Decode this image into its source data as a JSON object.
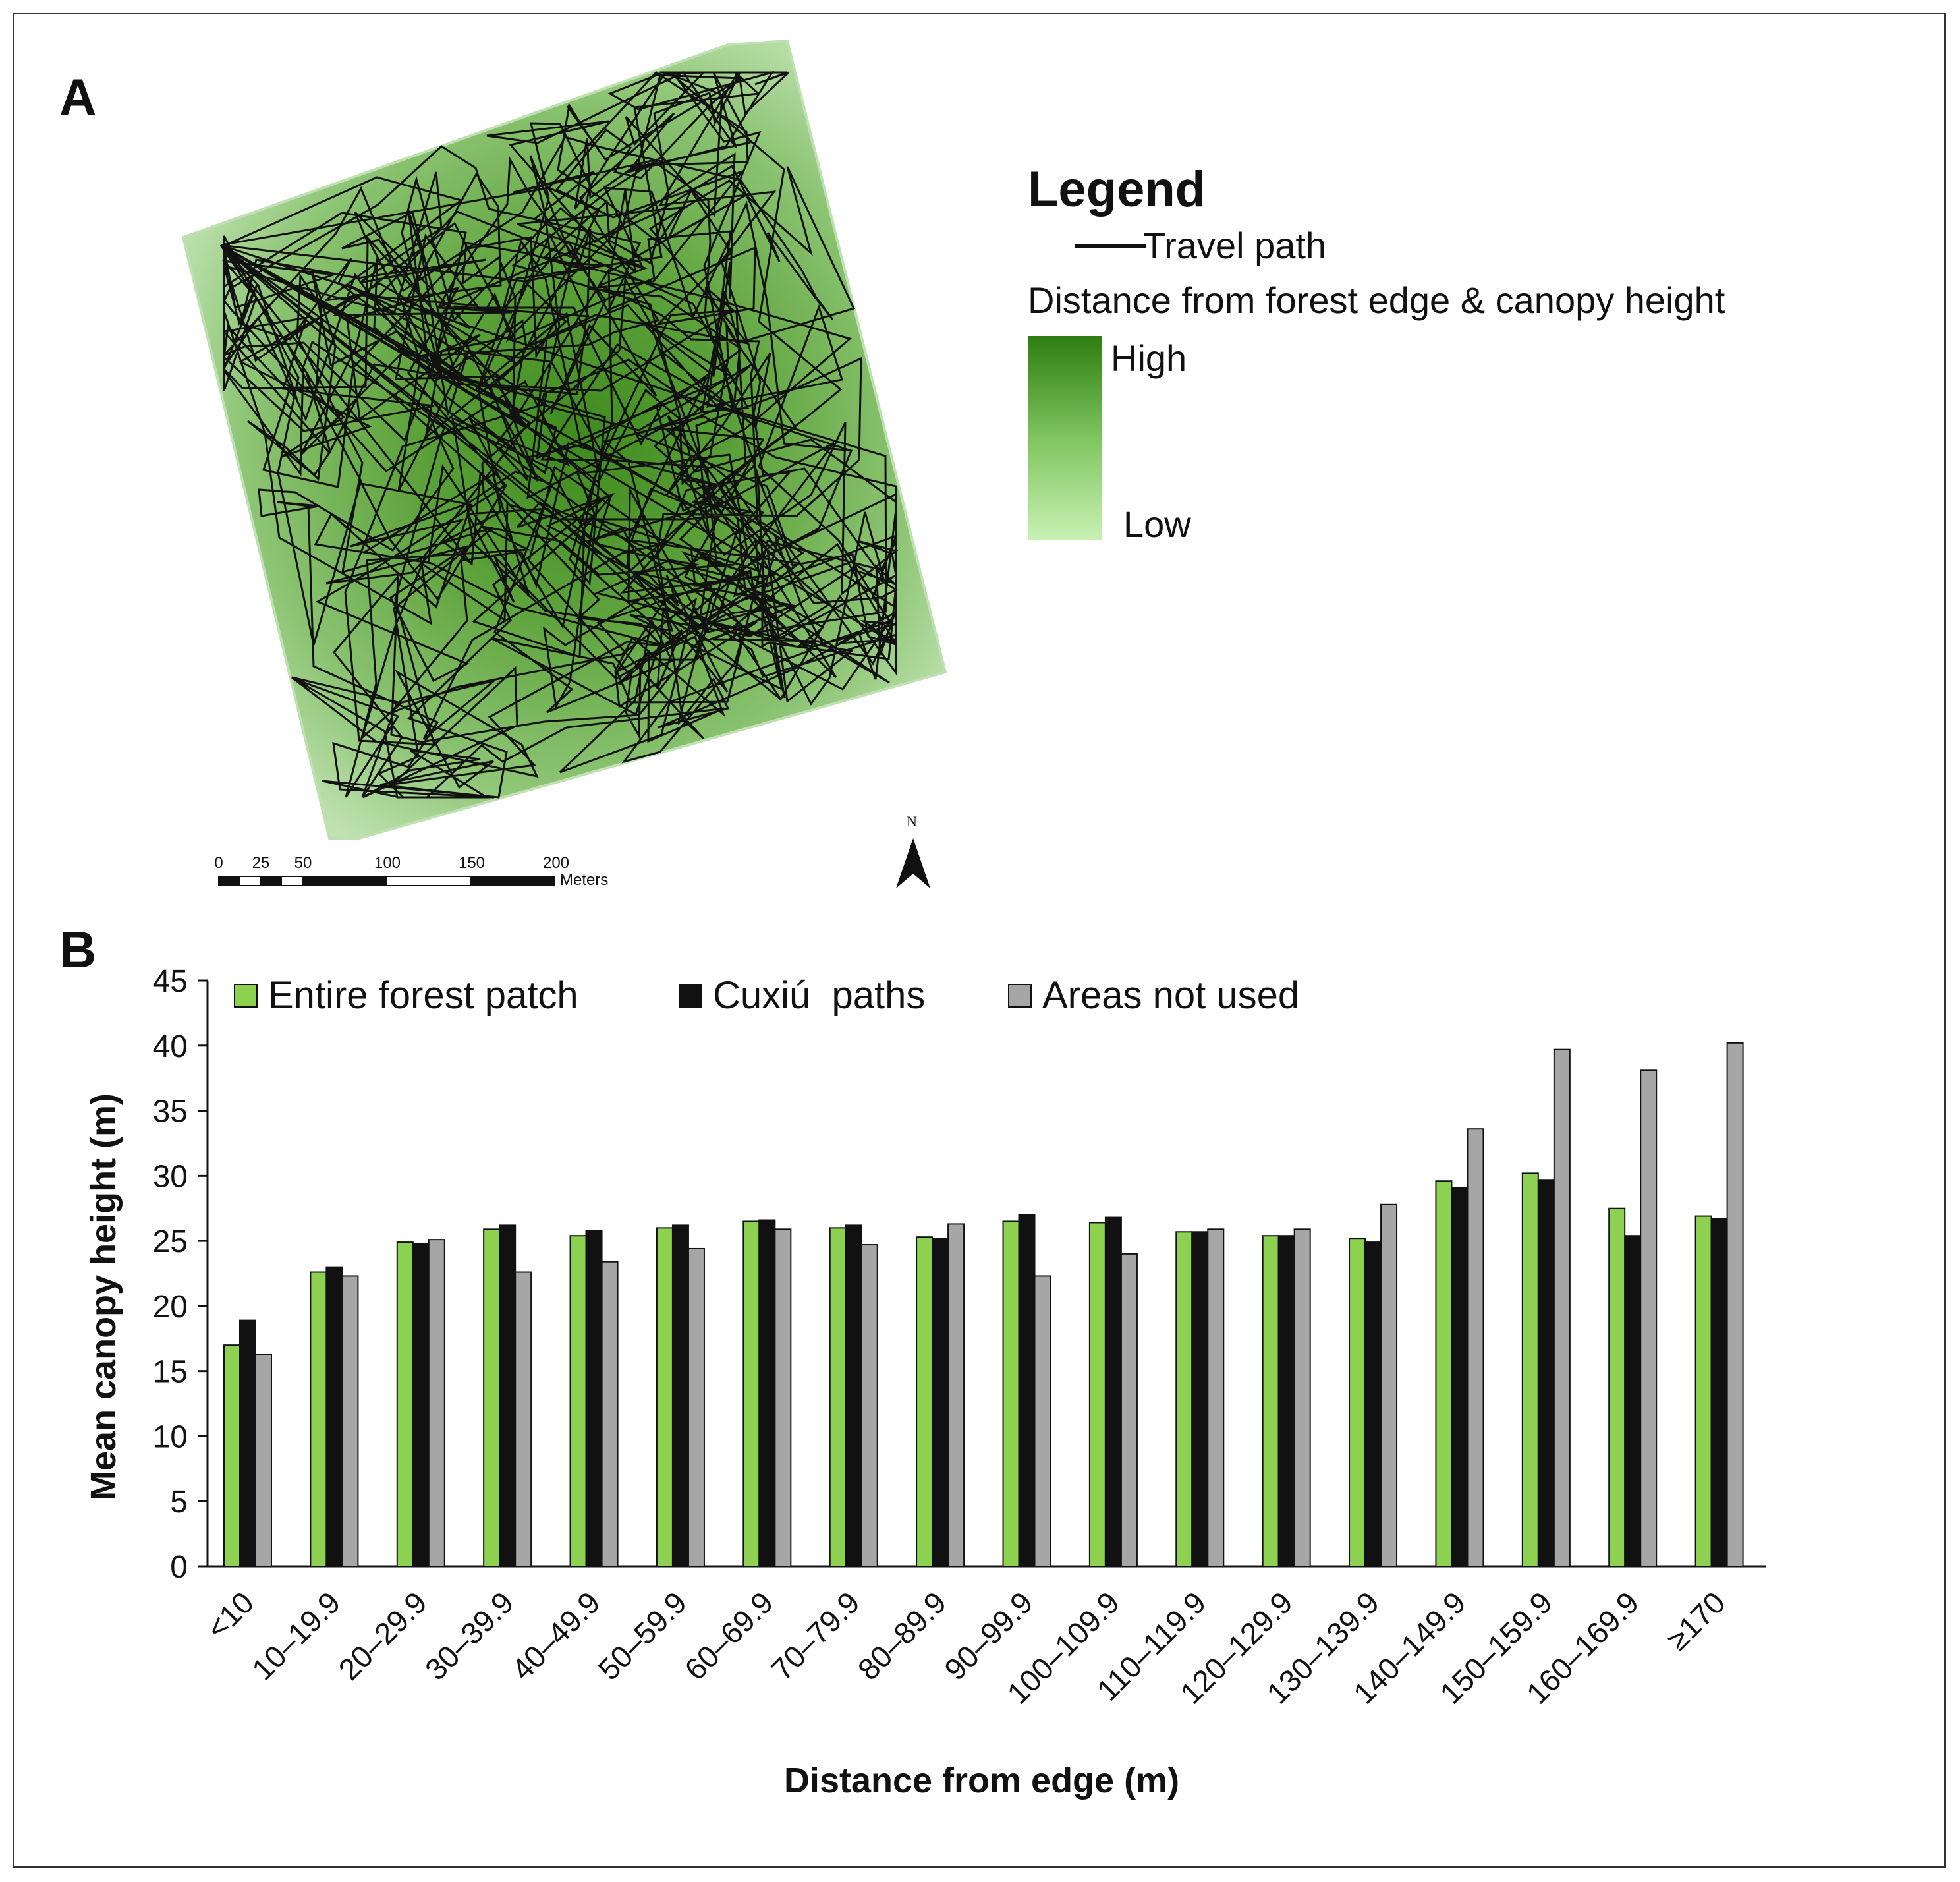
{
  "panel_a": {
    "label": "A",
    "legend": {
      "title": "Legend",
      "travel_path_label": "Travel path",
      "ramp_title": "Distance from forest edge & canopy height",
      "high_label": "High",
      "low_label": "Low"
    },
    "scale_bar": {
      "ticks": [
        "0",
        "25",
        "50",
        "100",
        "150",
        "200"
      ],
      "unit": "Meters"
    },
    "north_label": "N",
    "colors": {
      "ramp_high": "#2f7d10",
      "ramp_low": "#c8f2b4",
      "path": "#111111"
    }
  },
  "panel_b": {
    "label": "B"
  },
  "chart_data": {
    "type": "bar",
    "title": "",
    "xlabel": "Distance from edge (m)",
    "ylabel": "Mean canopy height (m)",
    "ylim": [
      0,
      45
    ],
    "yticks": [
      0,
      5,
      10,
      15,
      20,
      25,
      30,
      35,
      40,
      45
    ],
    "grid": false,
    "legend_position": "top",
    "categories": [
      "<10",
      "10–19.9",
      "20–29.9",
      "30–39.9",
      "40–49.9",
      "50–59.9",
      "60–69.9",
      "70–79.9",
      "80–89.9",
      "90–99.9",
      "100–109.9",
      "110–119.9",
      "120–129.9",
      "130–139.9",
      "140–149.9",
      "150–159.9",
      "160–169.9",
      "≥170"
    ],
    "series": [
      {
        "name": "Entire forest patch",
        "color": "#8cd150",
        "values": [
          17.0,
          22.6,
          24.9,
          25.9,
          25.4,
          26.0,
          26.5,
          26.0,
          25.3,
          26.5,
          26.4,
          25.7,
          25.4,
          25.2,
          29.6,
          30.2,
          27.5,
          26.9
        ]
      },
      {
        "name": "Cuxiú  paths",
        "color": "#111111",
        "values": [
          18.9,
          23.0,
          24.8,
          26.2,
          25.8,
          26.2,
          26.6,
          26.2,
          25.2,
          27.0,
          26.8,
          25.7,
          25.4,
          24.9,
          29.1,
          29.7,
          25.4,
          26.7
        ]
      },
      {
        "name": "Areas not used",
        "color": "#a6a6a6",
        "values": [
          16.3,
          22.3,
          25.1,
          22.6,
          23.4,
          24.4,
          25.9,
          24.7,
          26.3,
          22.3,
          24.0,
          25.9,
          25.9,
          27.8,
          33.6,
          39.7,
          38.1,
          40.2
        ]
      }
    ]
  }
}
